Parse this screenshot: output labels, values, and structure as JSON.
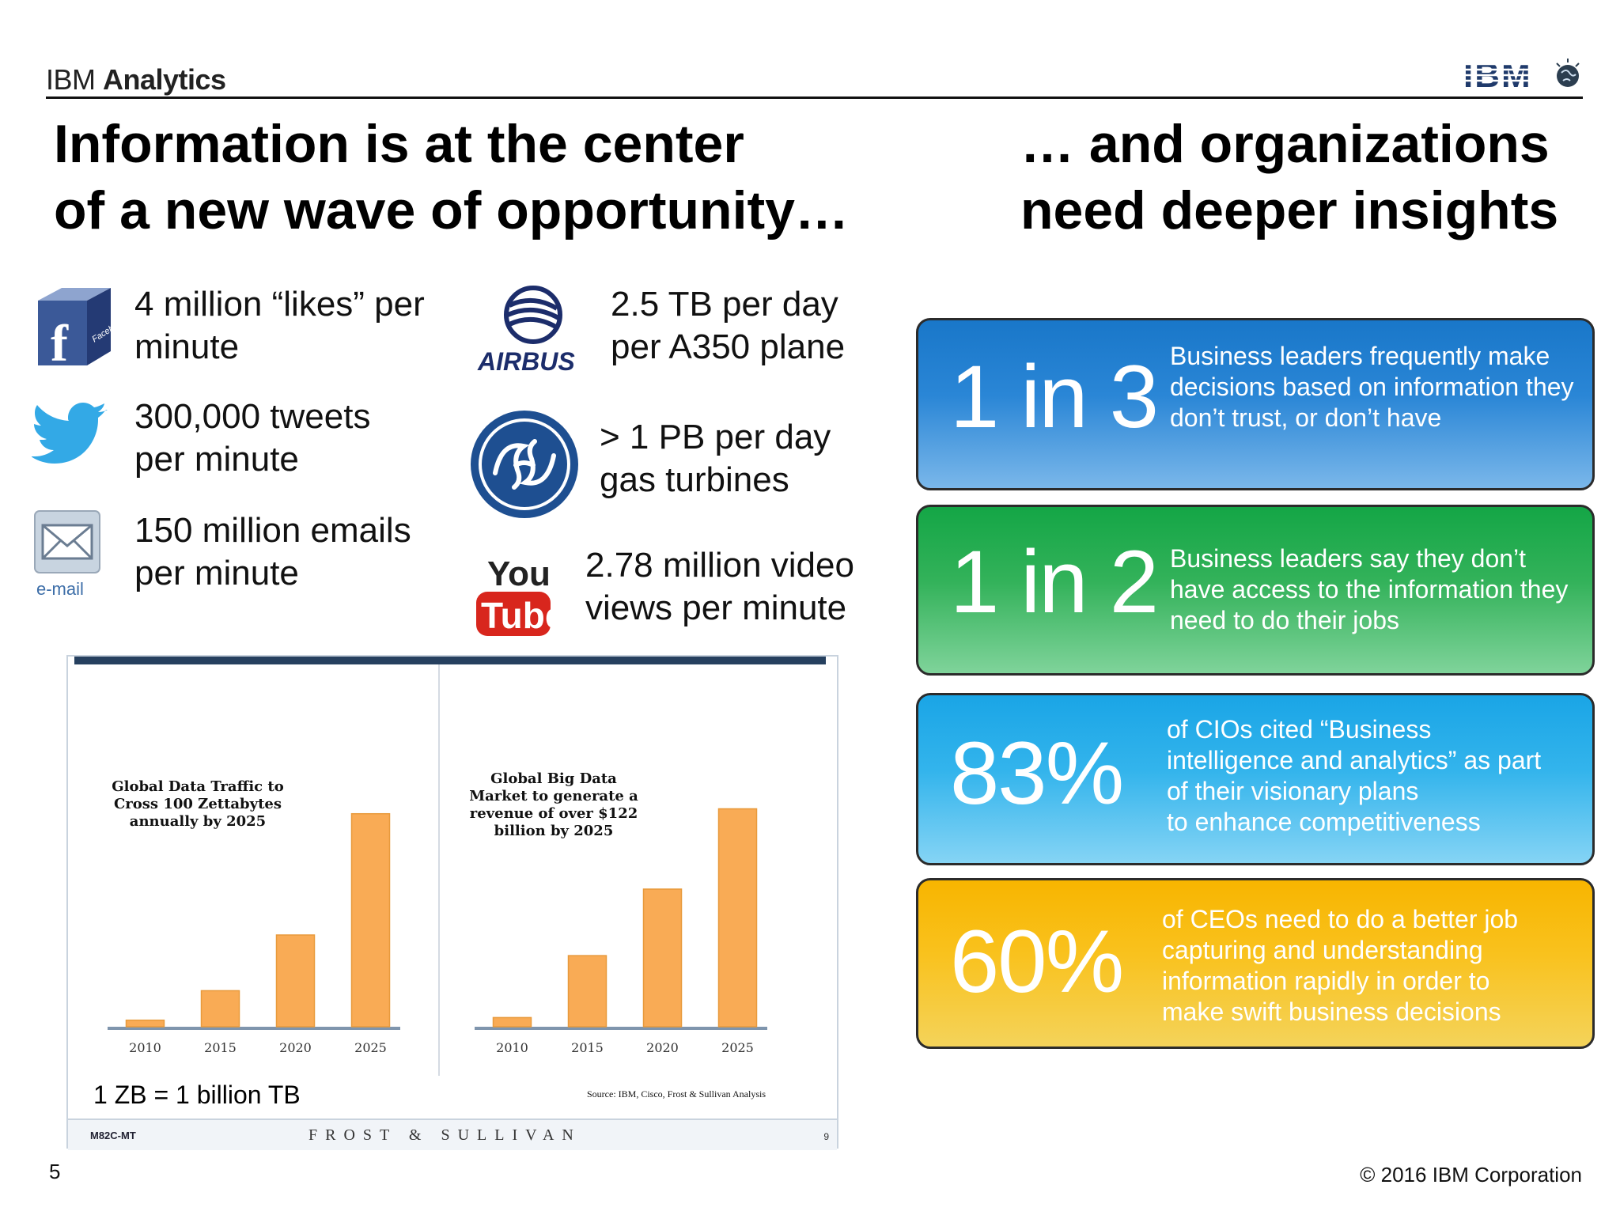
{
  "header": {
    "brand_regular": "IBM ",
    "brand_bold": "Analytics",
    "logo_text": "IBM"
  },
  "titles": {
    "left": "Information is at the center\nof a new wave of opportunity…",
    "right": "… and organizations\nneed deeper insights"
  },
  "facts": {
    "facebook": "4 million “likes” per\nminute",
    "twitter": "300,000 tweets\nper minute",
    "email": "150 million emails\nper minute",
    "airbus": "2.5 TB per day\nper A350 plane",
    "ge": " > 1 PB per day\ngas turbines",
    "youtube": "2.78 million video\nviews per minute"
  },
  "icons": {
    "facebook": "facebook-icon",
    "facebook_text": "Facebook",
    "twitter": "twitter-bird-icon",
    "email": "email-envelope-icon",
    "email_label": "e-mail",
    "airbus": "airbus-logo",
    "airbus_text": "AIRBUS",
    "ge": "ge-logo",
    "youtube": "youtube-logo",
    "youtube_you": "You",
    "youtube_tube": "Tube"
  },
  "insights": [
    {
      "big": "1 in 3",
      "text": "Business leaders frequently make\ndecisions based on information they\ndon’t trust, or don’t have",
      "color": "#1977c9"
    },
    {
      "big": "1 in 2",
      "text": "Business leaders say they don’t\nhave access to the information they\nneed to do their jobs",
      "color": "#14a646"
    },
    {
      "big": "83%",
      "text": "of CIOs cited “Business\nintelligence and analytics” as part\nof their visionary plans\nto enhance competitiveness",
      "color": "#1aa5e6"
    },
    {
      "big": "60%",
      "text": "of CEOs need to do a better job\ncapturing and understanding\ninformation rapidly in order to\nmake swift business decisions",
      "color": "#f8b500"
    }
  ],
  "chart_data": [
    {
      "type": "bar",
      "title": "Global Data Traffic to\nCross 100 Zettabytes\nannually by 2025",
      "categories": [
        "2010",
        "2015",
        "2020",
        "2025"
      ],
      "values": [
        2,
        11,
        28,
        65
      ],
      "ylim": [
        0,
        70
      ],
      "bar_color": "#f9ab55"
    },
    {
      "type": "bar",
      "title": "Global Big Data\nMarket to generate a\nrevenue of over $122\nbillion by 2025",
      "categories": [
        "2010",
        "2015",
        "2020",
        "2025"
      ],
      "values": [
        4,
        31,
        60,
        95
      ],
      "ylim": [
        0,
        100
      ],
      "bar_color": "#f9ab55"
    }
  ],
  "chart_panel": {
    "source": "Source: IBM, Cisco, Frost & Sullivan Analysis",
    "footer_code": "M82C-MT",
    "footer_brand": "FROST & SULLIVAN",
    "footer_page": "9",
    "zb_note": "1 ZB  = 1 billion TB"
  },
  "footer": {
    "page_number": "5",
    "copyright": "© 2016 IBM Corporation"
  }
}
